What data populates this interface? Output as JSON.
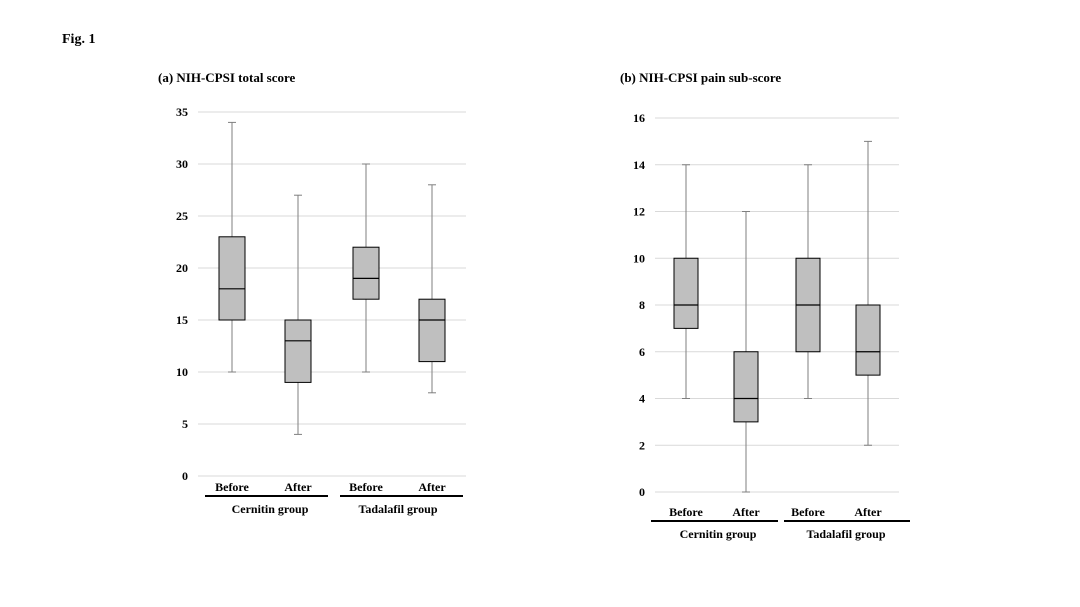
{
  "figure_label": "Fig. 1",
  "chart_data": [
    {
      "type": "boxplot",
      "title": "(a) NIH-CPSI total score",
      "ylim": [
        0,
        35
      ],
      "yticks": [
        0,
        5,
        10,
        15,
        20,
        25,
        30,
        35
      ],
      "grid": true,
      "categories": [
        "Before",
        "After",
        "Before",
        "After"
      ],
      "groups": [
        {
          "label": "Cernitin  group",
          "members": [
            0,
            1
          ]
        },
        {
          "label": "Tadalafil group",
          "members": [
            2,
            3
          ]
        }
      ],
      "boxes": [
        {
          "min": 10,
          "q1": 15,
          "median": 18,
          "q3": 23,
          "max": 34
        },
        {
          "min": 4,
          "q1": 9,
          "median": 13,
          "q3": 15,
          "max": 27
        },
        {
          "min": 10,
          "q1": 17,
          "median": 19,
          "q3": 22,
          "max": 30
        },
        {
          "min": 8,
          "q1": 11,
          "median": 15,
          "q3": 17,
          "max": 28
        }
      ]
    },
    {
      "type": "boxplot",
      "title": "(b) NIH-CPSI pain sub-score",
      "ylim": [
        0,
        16
      ],
      "yticks": [
        0,
        2,
        4,
        6,
        8,
        10,
        12,
        14,
        16
      ],
      "grid": true,
      "categories": [
        "Before",
        "After",
        "Before",
        "After"
      ],
      "groups": [
        {
          "label": "Cernitin  group",
          "members": [
            0,
            1
          ]
        },
        {
          "label": "Tadalafil group",
          "members": [
            2,
            3
          ]
        }
      ],
      "boxes": [
        {
          "min": 4,
          "q1": 7,
          "median": 8,
          "q3": 10,
          "max": 14
        },
        {
          "min": 0,
          "q1": 3,
          "median": 4,
          "q3": 6,
          "max": 12
        },
        {
          "min": 4,
          "q1": 6,
          "median": 8,
          "q3": 10,
          "max": 14
        },
        {
          "min": 2,
          "q1": 5,
          "median": 6,
          "q3": 8,
          "max": 15
        }
      ]
    }
  ],
  "style": {
    "box_fill": "#bfbfbf",
    "grid_color": "#d9d9d9",
    "whisker_color": "#7f7f7f"
  }
}
